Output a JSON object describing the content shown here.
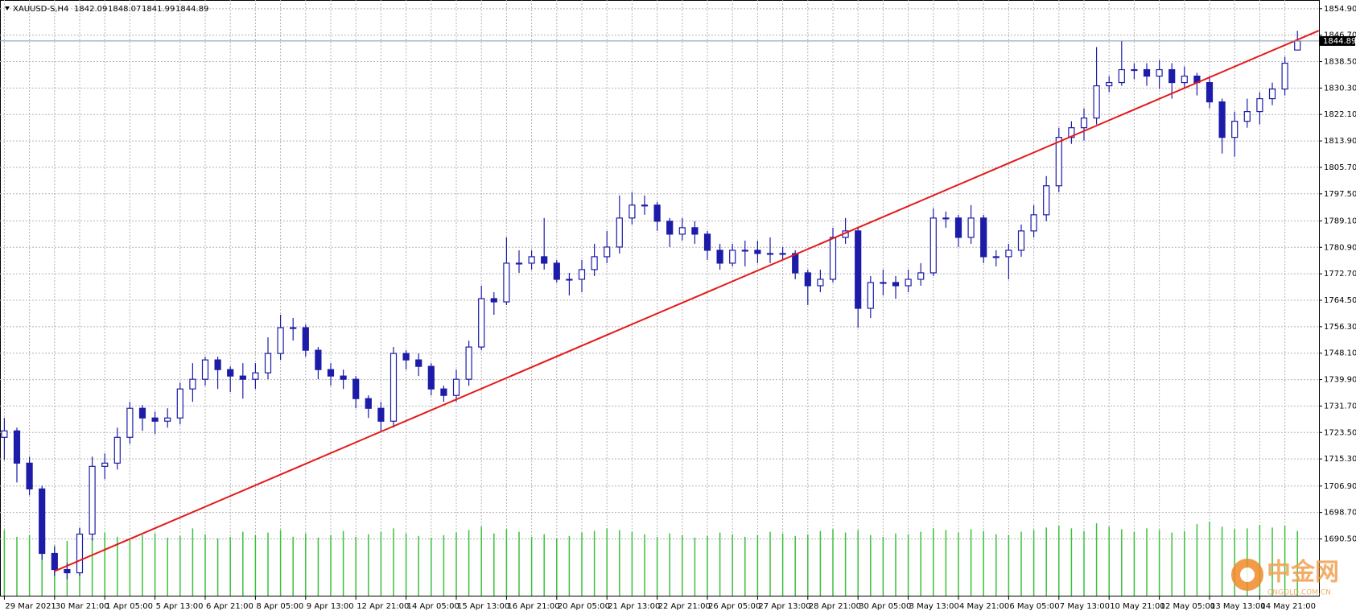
{
  "chart_data": {
    "type": "candlestick",
    "symbol": "XAUUSD-S,H4",
    "candle_color": "#1c1ca8",
    "volume_color": "#3cc03c",
    "grid": true,
    "ylim": [
      1672.9,
      1857.6
    ],
    "yticks": [
      {
        "value": 1690.5,
        "label": "1690.50"
      },
      {
        "value": 1698.7,
        "label": "1698.70"
      },
      {
        "value": 1706.9,
        "label": "1706.90"
      },
      {
        "value": 1715.3,
        "label": "1715.30"
      },
      {
        "value": 1723.5,
        "label": "1723.50"
      },
      {
        "value": 1731.7,
        "label": "1731.70"
      },
      {
        "value": 1739.9,
        "label": "1739.90"
      },
      {
        "value": 1748.1,
        "label": "1748.10"
      },
      {
        "value": 1756.3,
        "label": "1756.30"
      },
      {
        "value": 1764.5,
        "label": "1764.50"
      },
      {
        "value": 1772.7,
        "label": "1772.70"
      },
      {
        "value": 1780.9,
        "label": "1780.90"
      },
      {
        "value": 1789.1,
        "label": "1789.10"
      },
      {
        "value": 1797.5,
        "label": "1797.50"
      },
      {
        "value": 1805.7,
        "label": "1805.70"
      },
      {
        "value": 1813.9,
        "label": "1813.90"
      },
      {
        "value": 1822.1,
        "label": "1822.10"
      },
      {
        "value": 1830.3,
        "label": "1830.30"
      },
      {
        "value": 1838.5,
        "label": "1838.50"
      },
      {
        "value": 1846.7,
        "label": "1846.70"
      },
      {
        "value": 1854.9,
        "label": "1854.90"
      }
    ],
    "categories": [
      "29 Mar 2021",
      null,
      null,
      null,
      "30 Mar 21:00",
      null,
      null,
      null,
      "1 Apr 05:00",
      null,
      null,
      null,
      "5 Apr 13:00",
      null,
      null,
      null,
      "6 Apr 21:00",
      null,
      null,
      null,
      "8 Apr 05:00",
      null,
      null,
      null,
      "9 Apr 13:00",
      null,
      null,
      null,
      "12 Apr 21:00",
      null,
      null,
      null,
      "14 Apr 05:00",
      null,
      null,
      null,
      "15 Apr 13:00",
      null,
      null,
      null,
      "16 Apr 21:00",
      null,
      null,
      null,
      "20 Apr 05:00",
      null,
      null,
      null,
      "21 Apr 13:00",
      null,
      null,
      null,
      "22 Apr 21:00",
      null,
      null,
      null,
      "26 Apr 05:00",
      null,
      null,
      null,
      "27 Apr 13:00",
      null,
      null,
      null,
      "28 Apr 21:00",
      null,
      null,
      null,
      "30 Apr 05:00",
      null,
      null,
      null,
      "3 May 13:00",
      null,
      null,
      null,
      "4 May 21:00",
      null,
      null,
      null,
      "6 May 05:00",
      null,
      null,
      null,
      "7 May 13:00",
      null,
      null,
      null,
      "10 May 21:00",
      null,
      null,
      null,
      "12 May 05:00",
      null,
      null,
      null,
      "13 May 13:00",
      null,
      null,
      null,
      "14 May 21:00",
      null,
      null,
      null
    ],
    "open": [
      1722,
      1724,
      1714,
      1706,
      1686,
      1681,
      1680,
      1692,
      1713,
      1714,
      1722,
      1731,
      1728,
      1727,
      1728,
      1737,
      1740,
      1746,
      1743,
      1741,
      1740,
      1742,
      1748,
      1756,
      1756,
      1749,
      1743,
      1741,
      1740,
      1734,
      1731,
      1727,
      1748,
      1746,
      1744,
      1737,
      1735,
      1740,
      1750,
      1765,
      1764,
      1776,
      1776,
      1778,
      1776,
      1771,
      1771,
      1774,
      1778,
      1781,
      1790,
      1794,
      1794,
      1789,
      1785,
      1787,
      1785,
      1780,
      1776,
      1780,
      1780,
      1779,
      1779,
      1779,
      1773,
      1769,
      1771,
      1784,
      1786,
      1762,
      1770,
      1770,
      1769,
      1771,
      1773,
      1790,
      1790,
      1784,
      1790,
      1778,
      1778,
      1780,
      1786,
      1791,
      1800,
      1815,
      1818,
      1821,
      1831,
      1832,
      1836,
      1836,
      1834,
      1836,
      1832,
      1834,
      1832,
      1826,
      1815,
      1820,
      1823,
      1827,
      1830,
      1842.09
    ],
    "high": [
      1728,
      1725,
      1716,
      1707,
      1688,
      1683,
      1694,
      1716,
      1717,
      1725,
      1733,
      1732,
      1730,
      1731,
      1739,
      1745,
      1747,
      1747,
      1744,
      1745,
      1745,
      1753,
      1760,
      1759,
      1757,
      1750,
      1745,
      1743,
      1741,
      1735,
      1733,
      1750,
      1749,
      1748,
      1745,
      1738,
      1743,
      1752,
      1769,
      1767,
      1784,
      1780,
      1780,
      1790,
      1777,
      1773,
      1777,
      1782,
      1786,
      1797,
      1798,
      1797,
      1795,
      1790,
      1790,
      1789,
      1786,
      1782,
      1782,
      1783,
      1783,
      1784,
      1781,
      1780,
      1774,
      1774,
      1787,
      1790,
      1787,
      1772,
      1774,
      1772,
      1774,
      1776,
      1793,
      1792,
      1791,
      1794,
      1791,
      1780,
      1782,
      1788,
      1794,
      1803,
      1818,
      1820,
      1824,
      1843,
      1834,
      1845,
      1838,
      1838,
      1839,
      1838,
      1837,
      1835,
      1834,
      1827,
      1823,
      1827,
      1829,
      1832,
      1840,
      1848.07
    ],
    "low": [
      1715,
      1708,
      1704,
      1684,
      1679,
      1678,
      1679,
      1690,
      1709,
      1712,
      1720,
      1724,
      1723,
      1725,
      1726,
      1733,
      1738,
      1737,
      1736,
      1734,
      1737,
      1740,
      1746,
      1752,
      1747,
      1740,
      1738,
      1737,
      1731,
      1728,
      1724,
      1725,
      1743,
      1741,
      1735,
      1733,
      1733,
      1738,
      1749,
      1760,
      1763,
      1773,
      1774,
      1774,
      1770,
      1766,
      1767,
      1772,
      1776,
      1779,
      1788,
      1791,
      1786,
      1781,
      1783,
      1782,
      1777,
      1774,
      1775,
      1775,
      1776,
      1776,
      1777,
      1771,
      1763,
      1767,
      1770,
      1782,
      1756,
      1759,
      1766,
      1765,
      1767,
      1769,
      1772,
      1787,
      1781,
      1782,
      1776,
      1775,
      1771,
      1778,
      1784,
      1789,
      1798,
      1813,
      1814,
      1819,
      1829,
      1831,
      1833,
      1831,
      1830,
      1827,
      1830,
      1828,
      1824,
      1810,
      1809,
      1818,
      1819,
      1825,
      1828,
      1841.99
    ],
    "close": [
      1724,
      1714,
      1706,
      1686,
      1681,
      1680,
      1692,
      1713,
      1714,
      1722,
      1731,
      1728,
      1727,
      1728,
      1737,
      1740,
      1746,
      1743,
      1741,
      1740,
      1742,
      1748,
      1756,
      1756,
      1749,
      1743,
      1741,
      1740,
      1734,
      1731,
      1727,
      1748,
      1746,
      1744,
      1737,
      1735,
      1740,
      1750,
      1765,
      1764,
      1776,
      1776,
      1778,
      1776,
      1771,
      1771,
      1774,
      1778,
      1781,
      1790,
      1794,
      1794,
      1789,
      1785,
      1787,
      1785,
      1780,
      1776,
      1780,
      1780,
      1779,
      1779,
      1779,
      1773,
      1769,
      1771,
      1784,
      1786,
      1762,
      1770,
      1770,
      1769,
      1771,
      1773,
      1790,
      1790,
      1784,
      1790,
      1778,
      1778,
      1780,
      1786,
      1791,
      1800,
      1815,
      1818,
      1821,
      1831,
      1832,
      1836,
      1836,
      1834,
      1836,
      1832,
      1834,
      1832,
      1826,
      1815,
      1820,
      1823,
      1827,
      1830,
      1838,
      1844.89
    ],
    "volume": [
      78,
      70,
      72,
      84,
      60,
      65,
      80,
      68,
      75,
      70,
      66,
      72,
      74,
      69,
      71,
      80,
      73,
      68,
      70,
      76,
      72,
      75,
      78,
      70,
      74,
      69,
      72,
      77,
      70,
      73,
      76,
      80,
      74,
      71,
      69,
      72,
      75,
      78,
      82,
      74,
      79,
      76,
      70,
      73,
      68,
      71,
      75,
      77,
      80,
      78,
      76,
      73,
      70,
      74,
      72,
      69,
      71,
      75,
      73,
      70,
      72,
      76,
      74,
      71,
      73,
      77,
      79,
      75,
      78,
      72,
      70,
      74,
      73,
      76,
      80,
      78,
      75,
      79,
      77,
      73,
      72,
      76,
      78,
      81,
      83,
      80,
      77,
      86,
      82,
      79,
      76,
      80,
      78,
      75,
      77,
      85,
      88,
      82,
      79,
      80,
      84,
      81,
      83,
      77
    ],
    "trendline": {
      "color": "#e41a1a",
      "x": [
        4,
        104.7
      ],
      "y": [
        1680.5,
        1848.1
      ]
    },
    "price_line_color": "#8090b8",
    "watermark": "中金网",
    "watermark_url": "CNGOLD.COM.CN"
  }
}
